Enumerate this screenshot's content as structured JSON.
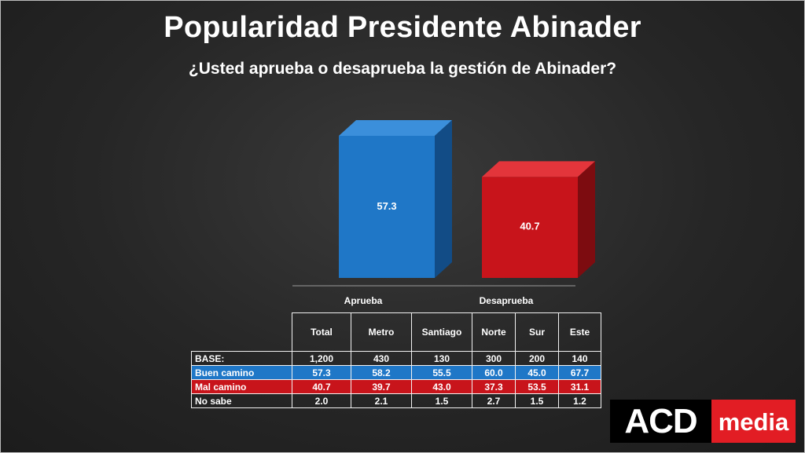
{
  "title": "Popularidad Presidente Abinader",
  "subtitle": "¿Usted aprueba o desaprueba la gestión de Abinader?",
  "colors": {
    "aprueba": "#1f77c7",
    "desaprueba": "#c8141b",
    "background": "#262626"
  },
  "chart_data": {
    "type": "bar",
    "categories": [
      "Aprueba",
      "Desaprueba"
    ],
    "values": [
      57.3,
      40.7
    ],
    "value_labels": [
      "57.3",
      "40.7"
    ],
    "ylim": [
      0,
      70
    ],
    "grid": false,
    "style": "3d"
  },
  "table": {
    "columns": [
      "Total",
      "Metro",
      "Santiago",
      "Norte",
      "Sur",
      "Este"
    ],
    "rows": [
      {
        "label": "BASE:",
        "values": [
          "1,200",
          "430",
          "130",
          "300",
          "200",
          "140"
        ]
      },
      {
        "label": "Buen camino",
        "values": [
          "57.3",
          "58.2",
          "55.5",
          "60.0",
          "45.0",
          "67.7"
        ]
      },
      {
        "label": "Mal camino",
        "values": [
          "40.7",
          "39.7",
          "43.0",
          "37.3",
          "53.5",
          "31.1"
        ]
      },
      {
        "label": "No sabe",
        "values": [
          "2.0",
          "2.1",
          "1.5",
          "2.7",
          "1.5",
          "1.2"
        ]
      }
    ]
  },
  "logo": {
    "left_text": "ACD",
    "right_text": "media"
  }
}
